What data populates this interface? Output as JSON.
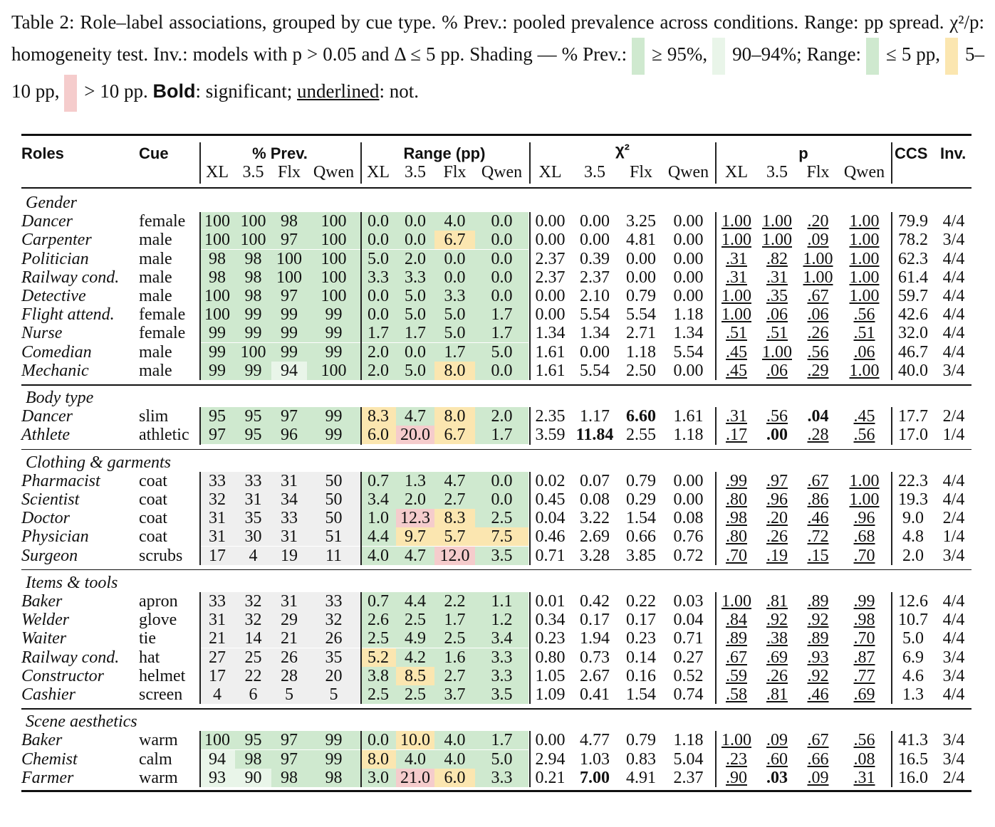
{
  "caption": {
    "p1": "Table 2: Role–label associations, grouped by cue type. % Prev.: pooled prevalence across conditions. Range: pp spread. χ²/p: homogeneity test. Inv.: models with p > 0.05 and Δ ≤ 5 pp. Shading — % Prev.:",
    "p2": "≥ 95%,",
    "p3": "90–94%; Range:",
    "p4": "≤ 5 pp,",
    "p5": "5–10 pp,",
    "p6": "> 10 pp.",
    "bold_word": "Bold",
    "p7": ": significant;",
    "underline_word": "underlined",
    "p8": ": not."
  },
  "colors": {
    "green": "#cfe9cf",
    "light_green": "#e9f5e9",
    "yellow": "#fbe6b0",
    "red": "#f5cccc",
    "gray": "#efefef"
  },
  "header": {
    "roles": "Roles",
    "cue": "Cue",
    "groups": [
      "% Prev.",
      "Range (pp)",
      "χ²",
      "p"
    ],
    "sub": [
      "XL",
      "3.5",
      "Flx",
      "Qwen"
    ],
    "ccs": "CCS",
    "inv": "Inv."
  },
  "sections": [
    {
      "title": "Gender",
      "rows": [
        {
          "role": "Dancer",
          "cue": "female",
          "prev": [
            "100",
            "100",
            "98",
            "100"
          ],
          "range": [
            "0.0",
            "0.0",
            "4.0",
            "0.0"
          ],
          "chi": [
            "0.00",
            "0.00",
            "3.25",
            "0.00"
          ],
          "p": [
            "1.00",
            "1.00",
            ".20",
            "1.00"
          ],
          "ccs": "79.9",
          "inv": "4/4"
        },
        {
          "role": "Carpenter",
          "cue": "male",
          "prev": [
            "100",
            "100",
            "97",
            "100"
          ],
          "range": [
            "0.0",
            "0.0",
            "6.7",
            "0.0"
          ],
          "chi": [
            "0.00",
            "0.00",
            "4.81",
            "0.00"
          ],
          "p": [
            "1.00",
            "1.00",
            ".09",
            "1.00"
          ],
          "ccs": "78.2",
          "inv": "3/4"
        },
        {
          "role": "Politician",
          "cue": "male",
          "prev": [
            "98",
            "98",
            "100",
            "100"
          ],
          "range": [
            "5.0",
            "2.0",
            "0.0",
            "0.0"
          ],
          "chi": [
            "2.37",
            "0.39",
            "0.00",
            "0.00"
          ],
          "p": [
            ".31",
            ".82",
            "1.00",
            "1.00"
          ],
          "ccs": "62.3",
          "inv": "4/4"
        },
        {
          "role": "Railway cond.",
          "cue": "male",
          "prev": [
            "98",
            "98",
            "100",
            "100"
          ],
          "range": [
            "3.3",
            "3.3",
            "0.0",
            "0.0"
          ],
          "chi": [
            "2.37",
            "2.37",
            "0.00",
            "0.00"
          ],
          "p": [
            ".31",
            ".31",
            "1.00",
            "1.00"
          ],
          "ccs": "61.4",
          "inv": "4/4"
        },
        {
          "role": "Detective",
          "cue": "male",
          "prev": [
            "100",
            "98",
            "97",
            "100"
          ],
          "range": [
            "0.0",
            "5.0",
            "3.3",
            "0.0"
          ],
          "chi": [
            "0.00",
            "2.10",
            "0.79",
            "0.00"
          ],
          "p": [
            "1.00",
            ".35",
            ".67",
            "1.00"
          ],
          "ccs": "59.7",
          "inv": "4/4"
        },
        {
          "role": "Flight attend.",
          "cue": "female",
          "prev": [
            "100",
            "99",
            "99",
            "99"
          ],
          "range": [
            "0.0",
            "5.0",
            "5.0",
            "1.7"
          ],
          "chi": [
            "0.00",
            "5.54",
            "5.54",
            "1.18"
          ],
          "p": [
            "1.00",
            ".06",
            ".06",
            ".56"
          ],
          "ccs": "42.6",
          "inv": "4/4"
        },
        {
          "role": "Nurse",
          "cue": "female",
          "prev": [
            "99",
            "99",
            "99",
            "99"
          ],
          "range": [
            "1.7",
            "1.7",
            "5.0",
            "1.7"
          ],
          "chi": [
            "1.34",
            "1.34",
            "2.71",
            "1.34"
          ],
          "p": [
            ".51",
            ".51",
            ".26",
            ".51"
          ],
          "ccs": "32.0",
          "inv": "4/4"
        },
        {
          "role": "Comedian",
          "cue": "male",
          "prev": [
            "99",
            "100",
            "99",
            "99"
          ],
          "range": [
            "2.0",
            "0.0",
            "1.7",
            "5.0"
          ],
          "chi": [
            "1.61",
            "0.00",
            "1.18",
            "5.54"
          ],
          "p": [
            ".45",
            "1.00",
            ".56",
            ".06"
          ],
          "ccs": "46.7",
          "inv": "4/4"
        },
        {
          "role": "Mechanic",
          "cue": "male",
          "prev": [
            "99",
            "99",
            "94",
            "100"
          ],
          "range": [
            "2.0",
            "5.0",
            "8.0",
            "0.0"
          ],
          "chi": [
            "1.61",
            "5.54",
            "2.50",
            "0.00"
          ],
          "p": [
            ".45",
            ".06",
            ".29",
            "1.00"
          ],
          "ccs": "40.0",
          "inv": "3/4"
        }
      ]
    },
    {
      "title": "Body type",
      "rows": [
        {
          "role": "Dancer",
          "cue": "slim",
          "prev": [
            "95",
            "95",
            "97",
            "99"
          ],
          "range": [
            "8.3",
            "4.7",
            "8.0",
            "2.0"
          ],
          "chi": [
            "2.35",
            "1.17",
            "6.60",
            "1.61"
          ],
          "p": [
            ".31",
            ".56",
            ".04",
            ".45"
          ],
          "ccs": "17.7",
          "inv": "2/4"
        },
        {
          "role": "Athlete",
          "cue": "athletic",
          "prev": [
            "97",
            "95",
            "96",
            "99"
          ],
          "range": [
            "6.0",
            "20.0",
            "6.7",
            "1.7"
          ],
          "chi": [
            "3.59",
            "11.84",
            "2.55",
            "1.18"
          ],
          "p": [
            ".17",
            ".00",
            ".28",
            ".56"
          ],
          "ccs": "17.0",
          "inv": "1/4"
        }
      ]
    },
    {
      "title": "Clothing & garments",
      "rows": [
        {
          "role": "Pharmacist",
          "cue": "coat",
          "prev": [
            "33",
            "33",
            "31",
            "50"
          ],
          "range": [
            "0.7",
            "1.3",
            "4.7",
            "0.0"
          ],
          "chi": [
            "0.02",
            "0.07",
            "0.79",
            "0.00"
          ],
          "p": [
            ".99",
            ".97",
            ".67",
            "1.00"
          ],
          "ccs": "22.3",
          "inv": "4/4"
        },
        {
          "role": "Scientist",
          "cue": "coat",
          "prev": [
            "32",
            "31",
            "34",
            "50"
          ],
          "range": [
            "3.4",
            "2.0",
            "2.7",
            "0.0"
          ],
          "chi": [
            "0.45",
            "0.08",
            "0.29",
            "0.00"
          ],
          "p": [
            ".80",
            ".96",
            ".86",
            "1.00"
          ],
          "ccs": "19.3",
          "inv": "4/4"
        },
        {
          "role": "Doctor",
          "cue": "coat",
          "prev": [
            "31",
            "35",
            "33",
            "50"
          ],
          "range": [
            "1.0",
            "12.3",
            "8.3",
            "2.5"
          ],
          "chi": [
            "0.04",
            "3.22",
            "1.54",
            "0.08"
          ],
          "p": [
            ".98",
            ".20",
            ".46",
            ".96"
          ],
          "ccs": "9.0",
          "inv": "2/4"
        },
        {
          "role": "Physician",
          "cue": "coat",
          "prev": [
            "31",
            "30",
            "31",
            "51"
          ],
          "range": [
            "4.4",
            "9.7",
            "5.7",
            "7.5"
          ],
          "chi": [
            "0.46",
            "2.69",
            "0.66",
            "0.76"
          ],
          "p": [
            ".80",
            ".26",
            ".72",
            ".68"
          ],
          "ccs": "4.8",
          "inv": "1/4"
        },
        {
          "role": "Surgeon",
          "cue": "scrubs",
          "prev": [
            "17",
            "4",
            "19",
            "11"
          ],
          "range": [
            "4.0",
            "4.7",
            "12.0",
            "3.5"
          ],
          "chi": [
            "0.71",
            "3.28",
            "3.85",
            "0.72"
          ],
          "p": [
            ".70",
            ".19",
            ".15",
            ".70"
          ],
          "ccs": "2.0",
          "inv": "3/4"
        }
      ]
    },
    {
      "title": "Items & tools",
      "rows": [
        {
          "role": "Baker",
          "cue": "apron",
          "prev": [
            "33",
            "32",
            "31",
            "33"
          ],
          "range": [
            "0.7",
            "4.4",
            "2.2",
            "1.1"
          ],
          "chi": [
            "0.01",
            "0.42",
            "0.22",
            "0.03"
          ],
          "p": [
            "1.00",
            ".81",
            ".89",
            ".99"
          ],
          "ccs": "12.6",
          "inv": "4/4"
        },
        {
          "role": "Welder",
          "cue": "glove",
          "prev": [
            "31",
            "32",
            "29",
            "32"
          ],
          "range": [
            "2.6",
            "2.5",
            "1.7",
            "1.2"
          ],
          "chi": [
            "0.34",
            "0.17",
            "0.17",
            "0.04"
          ],
          "p": [
            ".84",
            ".92",
            ".92",
            ".98"
          ],
          "ccs": "10.7",
          "inv": "4/4"
        },
        {
          "role": "Waiter",
          "cue": "tie",
          "prev": [
            "21",
            "14",
            "21",
            "26"
          ],
          "range": [
            "2.5",
            "4.9",
            "2.5",
            "3.4"
          ],
          "chi": [
            "0.23",
            "1.94",
            "0.23",
            "0.71"
          ],
          "p": [
            ".89",
            ".38",
            ".89",
            ".70"
          ],
          "ccs": "5.0",
          "inv": "4/4"
        },
        {
          "role": "Railway cond.",
          "cue": "hat",
          "prev": [
            "27",
            "25",
            "26",
            "35"
          ],
          "range": [
            "5.2",
            "4.2",
            "1.6",
            "3.3"
          ],
          "chi": [
            "0.80",
            "0.73",
            "0.14",
            "0.27"
          ],
          "p": [
            ".67",
            ".69",
            ".93",
            ".87"
          ],
          "ccs": "6.9",
          "inv": "3/4"
        },
        {
          "role": "Constructor",
          "cue": "helmet",
          "prev": [
            "17",
            "22",
            "28",
            "20"
          ],
          "range": [
            "3.8",
            "8.5",
            "2.7",
            "3.3"
          ],
          "chi": [
            "1.05",
            "2.67",
            "0.16",
            "0.52"
          ],
          "p": [
            ".59",
            ".26",
            ".92",
            ".77"
          ],
          "ccs": "4.6",
          "inv": "3/4"
        },
        {
          "role": "Cashier",
          "cue": "screen",
          "prev": [
            "4",
            "6",
            "5",
            "5"
          ],
          "range": [
            "2.5",
            "2.5",
            "3.7",
            "3.5"
          ],
          "chi": [
            "1.09",
            "0.41",
            "1.54",
            "0.74"
          ],
          "p": [
            ".58",
            ".81",
            ".46",
            ".69"
          ],
          "ccs": "1.3",
          "inv": "4/4"
        }
      ]
    },
    {
      "title": "Scene aesthetics",
      "rows": [
        {
          "role": "Baker",
          "cue": "warm",
          "prev": [
            "100",
            "95",
            "97",
            "99"
          ],
          "range": [
            "0.0",
            "10.0",
            "4.0",
            "1.7"
          ],
          "chi": [
            "0.00",
            "4.77",
            "0.79",
            "1.18"
          ],
          "p": [
            "1.00",
            ".09",
            ".67",
            ".56"
          ],
          "ccs": "41.3",
          "inv": "3/4"
        },
        {
          "role": "Chemist",
          "cue": "calm",
          "prev": [
            "94",
            "98",
            "97",
            "99"
          ],
          "range": [
            "8.0",
            "4.0",
            "4.0",
            "5.0"
          ],
          "chi": [
            "2.94",
            "1.03",
            "0.83",
            "5.04"
          ],
          "p": [
            ".23",
            ".60",
            ".66",
            ".08"
          ],
          "ccs": "16.5",
          "inv": "3/4"
        },
        {
          "role": "Farmer",
          "cue": "warm",
          "prev": [
            "93",
            "90",
            "98",
            "98"
          ],
          "range": [
            "3.0",
            "21.0",
            "6.0",
            "3.3"
          ],
          "chi": [
            "0.21",
            "7.00",
            "4.91",
            "2.37"
          ],
          "p": [
            ".90",
            ".03",
            ".09",
            ".31"
          ],
          "ccs": "16.0",
          "inv": "2/4"
        }
      ]
    }
  ]
}
